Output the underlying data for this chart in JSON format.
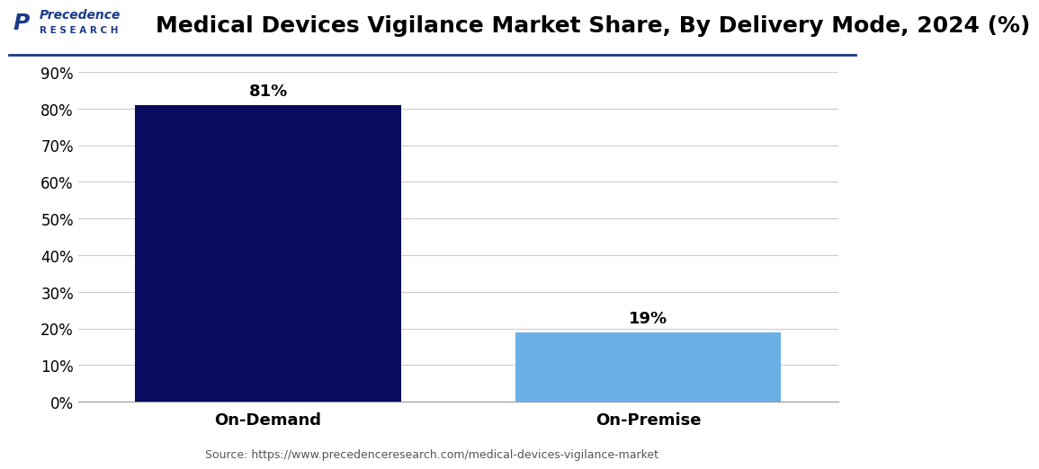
{
  "title": "Medical Devices Vigilance Market Share, By Delivery Mode, 2024 (%)",
  "categories": [
    "On-Demand",
    "On-Premise"
  ],
  "values": [
    81,
    19
  ],
  "bar_colors": [
    "#0a0a5e",
    "#6ab0e8"
  ],
  "ylim": [
    0,
    90
  ],
  "yticks": [
    0,
    10,
    20,
    30,
    40,
    50,
    60,
    70,
    80,
    90
  ],
  "ytick_labels": [
    "0%",
    "10%",
    "20%",
    "30%",
    "40%",
    "50%",
    "60%",
    "70%",
    "80%",
    "90%"
  ],
  "value_labels": [
    "81%",
    "19%"
  ],
  "source_text": "Source: https://www.precedenceresearch.com/medical-devices-vigilance-market",
  "background_color": "#ffffff",
  "title_fontsize": 18,
  "tick_fontsize": 12,
  "label_fontsize": 13,
  "value_fontsize": 13,
  "bar_width": 0.35,
  "title_color": "#000000",
  "grid_color": "#cccccc",
  "header_line_color": "#1a3a8a",
  "source_fontsize": 9,
  "logo_precedence_color": "#1a3a8a",
  "logo_research_color": "#1a3a8a"
}
